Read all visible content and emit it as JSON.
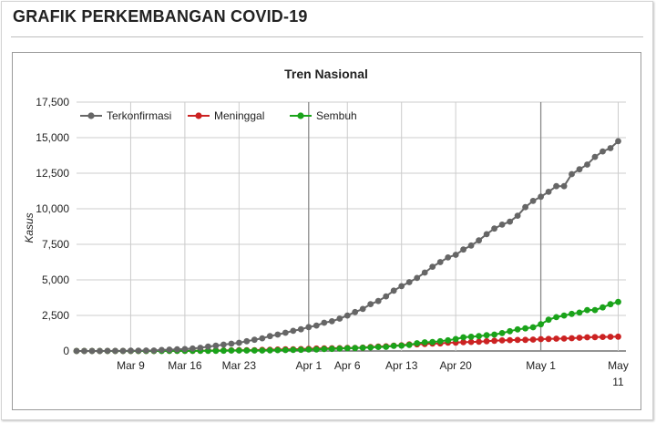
{
  "page": {
    "title": "GRAFIK PERKEMBANGAN COVID-19"
  },
  "colors": {
    "terkonfirmasi": "#666666",
    "meninggal": "#cc2222",
    "sembuh": "#1aa31a",
    "grid": "#cccccc"
  },
  "chart_data": {
    "type": "line",
    "title": "Tren Nasional",
    "xlabel": "",
    "ylabel": "Kasus",
    "legend_position": "top-left",
    "grid": true,
    "ylim": [
      0,
      17500
    ],
    "yticks": [
      "0",
      "2,500",
      "5,000",
      "7,500",
      "10,000",
      "12,500",
      "15,000",
      "17,500"
    ],
    "ytick_values": [
      0,
      2500,
      5000,
      7500,
      10000,
      12500,
      15000,
      17500
    ],
    "xlim": [
      "2020-03-02",
      "2020-05-12"
    ],
    "xticks": [
      {
        "date": "2020-03-09",
        "label": "Mar 9"
      },
      {
        "date": "2020-03-16",
        "label": "Mar 16"
      },
      {
        "date": "2020-03-23",
        "label": "Mar 23"
      },
      {
        "date": "2020-04-01",
        "label": "Apr 1"
      },
      {
        "date": "2020-04-06",
        "label": "Apr 6"
      },
      {
        "date": "2020-04-13",
        "label": "Apr 13"
      },
      {
        "date": "2020-04-20",
        "label": "Apr 20"
      },
      {
        "date": "2020-05-01",
        "label": "May 1"
      },
      {
        "date": "2020-05-11",
        "label": "May",
        "label2": "11"
      }
    ],
    "major_grid_dates": [
      "2020-04-01",
      "2020-05-01"
    ],
    "x": [
      "2020-03-02",
      "2020-03-03",
      "2020-03-04",
      "2020-03-05",
      "2020-03-06",
      "2020-03-07",
      "2020-03-08",
      "2020-03-09",
      "2020-03-10",
      "2020-03-11",
      "2020-03-12",
      "2020-03-13",
      "2020-03-14",
      "2020-03-15",
      "2020-03-16",
      "2020-03-17",
      "2020-03-18",
      "2020-03-19",
      "2020-03-20",
      "2020-03-21",
      "2020-03-22",
      "2020-03-23",
      "2020-03-24",
      "2020-03-25",
      "2020-03-26",
      "2020-03-27",
      "2020-03-28",
      "2020-03-29",
      "2020-03-30",
      "2020-03-31",
      "2020-04-01",
      "2020-04-02",
      "2020-04-03",
      "2020-04-04",
      "2020-04-05",
      "2020-04-06",
      "2020-04-07",
      "2020-04-08",
      "2020-04-09",
      "2020-04-10",
      "2020-04-11",
      "2020-04-12",
      "2020-04-13",
      "2020-04-14",
      "2020-04-15",
      "2020-04-16",
      "2020-04-17",
      "2020-04-18",
      "2020-04-19",
      "2020-04-20",
      "2020-04-21",
      "2020-04-22",
      "2020-04-23",
      "2020-04-24",
      "2020-04-25",
      "2020-04-26",
      "2020-04-27",
      "2020-04-28",
      "2020-04-29",
      "2020-04-30",
      "2020-05-01",
      "2020-05-02",
      "2020-05-03",
      "2020-05-04",
      "2020-05-05",
      "2020-05-06",
      "2020-05-07",
      "2020-05-08",
      "2020-05-09",
      "2020-05-10",
      "2020-05-11"
    ],
    "series": [
      {
        "name": "Terkonfirmasi",
        "color_key": "terkonfirmasi",
        "values": [
          2,
          2,
          2,
          2,
          4,
          4,
          6,
          19,
          27,
          34,
          34,
          69,
          96,
          117,
          134,
          172,
          227,
          309,
          369,
          450,
          514,
          579,
          686,
          790,
          893,
          1046,
          1155,
          1285,
          1414,
          1528,
          1677,
          1790,
          1986,
          2092,
          2273,
          2491,
          2738,
          2956,
          3293,
          3512,
          3842,
          4241,
          4557,
          4839,
          5136,
          5516,
          5923,
          6248,
          6575,
          6760,
          7135,
          7418,
          7775,
          8211,
          8607,
          8882,
          9096,
          9511,
          10118,
          10551,
          10843,
          11192,
          11587,
          11587,
          12438,
          12776,
          13112,
          13645,
          14032,
          14265,
          14749
        ]
      },
      {
        "name": "Meninggal",
        "color_key": "meninggal",
        "values": [
          0,
          0,
          0,
          0,
          0,
          0,
          0,
          0,
          0,
          1,
          1,
          4,
          5,
          5,
          5,
          5,
          19,
          25,
          32,
          38,
          48,
          49,
          55,
          58,
          78,
          87,
          102,
          114,
          122,
          136,
          157,
          170,
          181,
          191,
          198,
          209,
          221,
          240,
          280,
          306,
          327,
          373,
          399,
          459,
          469,
          496,
          520,
          535,
          582,
          590,
          615,
          635,
          647,
          689,
          720,
          743,
          765,
          773,
          784,
          800,
          831,
          845,
          864,
          872,
          895,
          930,
          959,
          973,
          984,
          991,
          1007
        ]
      },
      {
        "name": "Sembuh",
        "color_key": "sembuh",
        "values": [
          0,
          0,
          0,
          0,
          0,
          0,
          0,
          0,
          0,
          2,
          2,
          3,
          5,
          8,
          8,
          8,
          11,
          15,
          16,
          20,
          29,
          30,
          31,
          31,
          35,
          46,
          59,
          64,
          75,
          81,
          103,
          112,
          134,
          150,
          164,
          192,
          202,
          222,
          252,
          282,
          286,
          359,
          380,
          426,
          548,
          607,
          631,
          686,
          747,
          842,
          960,
          1002,
          1042,
          1107,
          1151,
          1254,
          1391,
          1522,
          1591,
          1665,
          1876,
          2197,
          2381,
          2494,
          2607,
          2698,
          2881,
          2881,
          3063,
          3287,
          3450
        ]
      }
    ]
  }
}
